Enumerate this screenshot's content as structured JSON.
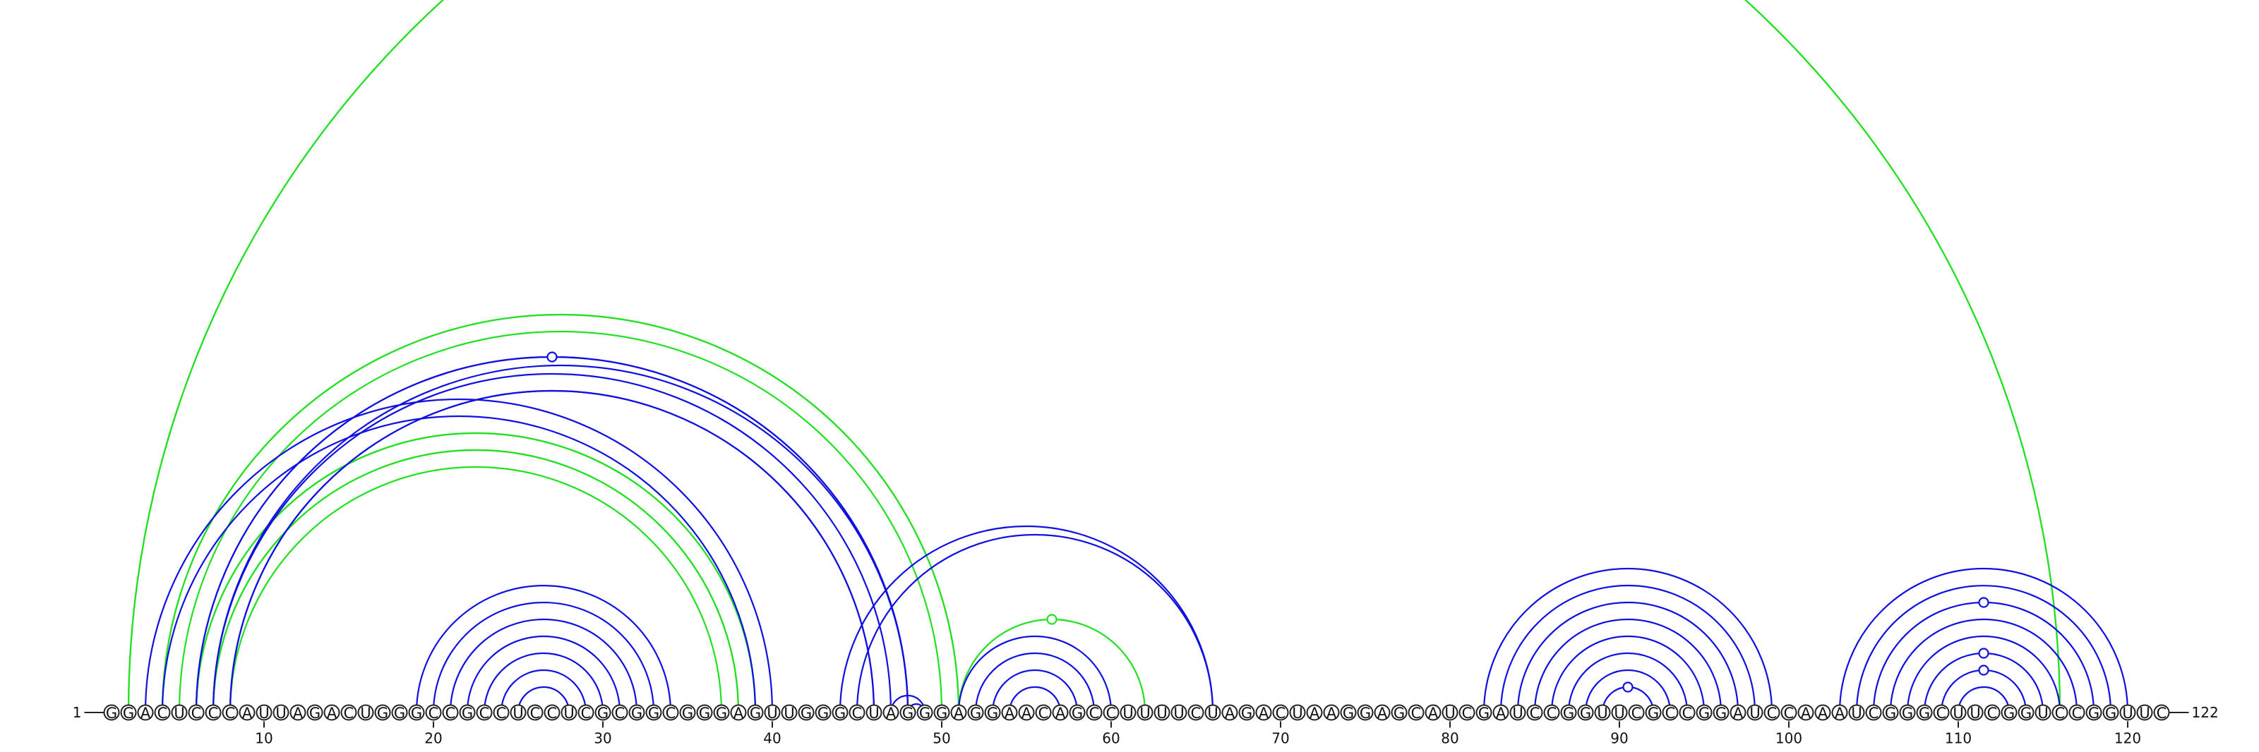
{
  "sequence": {
    "letters": "GGACUCCCAUUAGACUGGGCCGCCUCCUCGCGGCGGGAGUUGGGCUAGGGAGGAACAGCCUUUUCUAGACUAAGGAGCAUCGAUCCGGUUCGCCGGAUCCAAAUCGGGCUUCGGUCCGGUUC",
    "start_label": "1",
    "end_label": "122",
    "start_index": 1,
    "length": 122
  },
  "ticks": [
    {
      "pos": 10,
      "label": "10"
    },
    {
      "pos": 20,
      "label": "20"
    },
    {
      "pos": 30,
      "label": "30"
    },
    {
      "pos": 40,
      "label": "40"
    },
    {
      "pos": 50,
      "label": "50"
    },
    {
      "pos": 60,
      "label": "60"
    },
    {
      "pos": 70,
      "label": "70"
    },
    {
      "pos": 80,
      "label": "80"
    },
    {
      "pos": 90,
      "label": "90"
    },
    {
      "pos": 100,
      "label": "100"
    },
    {
      "pos": 110,
      "label": "110"
    },
    {
      "pos": 120,
      "label": "120"
    }
  ],
  "colors": {
    "primary": "#1010e0",
    "secondary": "#22e022"
  },
  "arcs": {
    "green": [
      [
        2,
        116
      ],
      [
        2,
        116
      ],
      [
        4,
        51
      ],
      [
        4,
        51
      ],
      [
        5,
        50
      ],
      [
        6,
        39
      ],
      [
        6,
        39
      ],
      [
        7,
        38
      ],
      [
        7,
        38
      ],
      [
        8,
        37
      ],
      [
        51,
        62
      ]
    ],
    "blue": [
      [
        3,
        40
      ],
      [
        4,
        39
      ],
      [
        6,
        48
      ],
      [
        6,
        48
      ],
      [
        7,
        48
      ],
      [
        7,
        47
      ],
      [
        8,
        46
      ],
      [
        8,
        46
      ],
      [
        19,
        34
      ],
      [
        20,
        33
      ],
      [
        21,
        32
      ],
      [
        22,
        31
      ],
      [
        23,
        30
      ],
      [
        24,
        29
      ],
      [
        25,
        28
      ],
      [
        44,
        66
      ],
      [
        45,
        66
      ],
      [
        47,
        49
      ],
      [
        48,
        49
      ],
      [
        51,
        60
      ],
      [
        52,
        59
      ],
      [
        53,
        58
      ],
      [
        54,
        57
      ],
      [
        82,
        99
      ],
      [
        83,
        98
      ],
      [
        84,
        97
      ],
      [
        85,
        96
      ],
      [
        86,
        95
      ],
      [
        87,
        94
      ],
      [
        88,
        93
      ],
      [
        89,
        92
      ],
      [
        103,
        120
      ],
      [
        104,
        119
      ],
      [
        105,
        118
      ],
      [
        106,
        117
      ],
      [
        107,
        116
      ],
      [
        108,
        115
      ],
      [
        109,
        114
      ],
      [
        110,
        113
      ]
    ]
  },
  "markers": {
    "green": [
      [
        51,
        62
      ]
    ],
    "blue": [
      [
        6,
        48
      ],
      [
        89,
        92
      ],
      [
        109,
        114
      ],
      [
        108,
        115
      ],
      [
        105,
        118
      ]
    ]
  }
}
